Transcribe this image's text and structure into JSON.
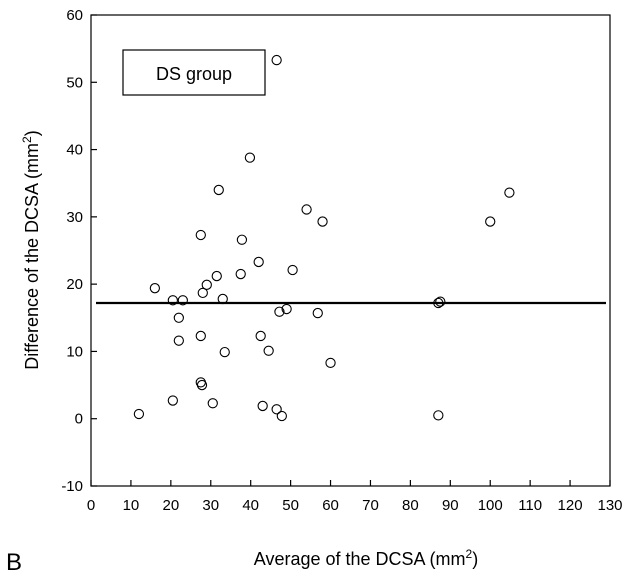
{
  "panel_label": "B",
  "chart_data": {
    "type": "scatter",
    "legend_label": "DS group",
    "legend_position": "top-left",
    "xlabel": "Average of the DCSA (mm",
    "xlabel_sup": "2",
    "xlabel_end": ")",
    "ylabel": "Difference of the DCSA (mm",
    "ylabel_sup": "2",
    "ylabel_end": ")",
    "xlim": [
      0,
      130
    ],
    "ylim": [
      -10,
      60
    ],
    "xticks": [
      "0",
      "10",
      "20",
      "30",
      "40",
      "50",
      "60",
      "70",
      "80",
      "90",
      "100",
      "110",
      "120",
      "130"
    ],
    "yticks": [
      "-10",
      "0",
      "10",
      "20",
      "30",
      "40",
      "50",
      "60"
    ],
    "grid": false,
    "mean_line": 17.2,
    "points": [
      {
        "x": 12.0,
        "y": 0.7
      },
      {
        "x": 16.0,
        "y": 19.4
      },
      {
        "x": 20.5,
        "y": 2.7
      },
      {
        "x": 20.5,
        "y": 17.6
      },
      {
        "x": 22.0,
        "y": 15.0
      },
      {
        "x": 22.0,
        "y": 11.6
      },
      {
        "x": 23.0,
        "y": 17.6
      },
      {
        "x": 27.5,
        "y": 27.3
      },
      {
        "x": 28.0,
        "y": 18.7
      },
      {
        "x": 27.5,
        "y": 12.3
      },
      {
        "x": 27.5,
        "y": 5.4
      },
      {
        "x": 27.8,
        "y": 5.0
      },
      {
        "x": 29.0,
        "y": 19.9
      },
      {
        "x": 30.5,
        "y": 2.3
      },
      {
        "x": 31.5,
        "y": 21.2
      },
      {
        "x": 32.0,
        "y": 34.0
      },
      {
        "x": 33.0,
        "y": 17.8
      },
      {
        "x": 33.5,
        "y": 9.9
      },
      {
        "x": 37.5,
        "y": 21.5
      },
      {
        "x": 37.8,
        "y": 26.6
      },
      {
        "x": 39.8,
        "y": 38.8
      },
      {
        "x": 42.0,
        "y": 23.3
      },
      {
        "x": 42.5,
        "y": 12.3
      },
      {
        "x": 43.0,
        "y": 1.9
      },
      {
        "x": 44.5,
        "y": 10.1
      },
      {
        "x": 46.5,
        "y": 53.3
      },
      {
        "x": 46.5,
        "y": 1.4
      },
      {
        "x": 47.2,
        "y": 15.9
      },
      {
        "x": 47.8,
        "y": 0.4
      },
      {
        "x": 49.0,
        "y": 16.3
      },
      {
        "x": 50.5,
        "y": 22.1
      },
      {
        "x": 54.0,
        "y": 31.1
      },
      {
        "x": 56.8,
        "y": 15.7
      },
      {
        "x": 58.0,
        "y": 29.3
      },
      {
        "x": 60.0,
        "y": 8.3
      },
      {
        "x": 87.0,
        "y": 17.2
      },
      {
        "x": 87.5,
        "y": 17.4
      },
      {
        "x": 87.0,
        "y": 0.5
      },
      {
        "x": 100.0,
        "y": 29.3
      },
      {
        "x": 104.8,
        "y": 33.6
      }
    ]
  }
}
